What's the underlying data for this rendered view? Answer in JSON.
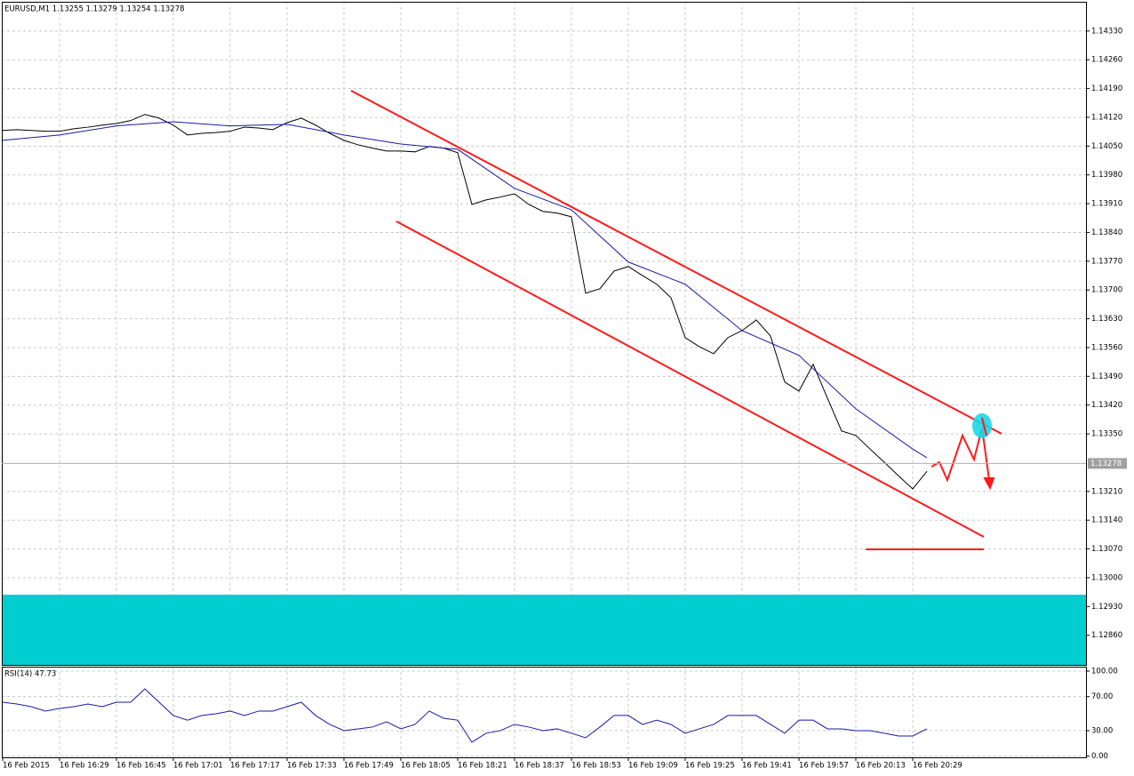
{
  "chart_data": [
    {
      "type": "line",
      "title": "EURUSD,M1  1.13255 1.13279 1.13254 1.13278",
      "x": [
        "16 Feb 16:13",
        "16 Feb 16:17",
        "16 Feb 16:21",
        "16 Feb 16:25",
        "16 Feb 16:29",
        "16 Feb 16:33",
        "16 Feb 16:37",
        "16 Feb 16:41",
        "16 Feb 16:45",
        "16 Feb 16:49",
        "16 Feb 16:53",
        "16 Feb 16:57",
        "16 Feb 17:01",
        "16 Feb 17:05",
        "16 Feb 17:09",
        "16 Feb 17:13",
        "16 Feb 17:17",
        "16 Feb 17:21",
        "16 Feb 17:25",
        "16 Feb 17:29",
        "16 Feb 17:33",
        "16 Feb 17:37",
        "16 Feb 17:41",
        "16 Feb 17:45",
        "16 Feb 17:49",
        "16 Feb 17:53",
        "16 Feb 17:57",
        "16 Feb 18:01",
        "16 Feb 18:05",
        "16 Feb 18:09",
        "16 Feb 18:13",
        "16 Feb 18:17",
        "16 Feb 18:21",
        "16 Feb 18:25",
        "16 Feb 18:29",
        "16 Feb 18:33",
        "16 Feb 18:37",
        "16 Feb 18:41",
        "16 Feb 18:45",
        "16 Feb 18:49",
        "16 Feb 18:53",
        "16 Feb 18:57",
        "16 Feb 19:01",
        "16 Feb 19:05",
        "16 Feb 19:09",
        "16 Feb 19:13",
        "16 Feb 19:17",
        "16 Feb 19:21",
        "16 Feb 19:25",
        "16 Feb 19:29",
        "16 Feb 19:33",
        "16 Feb 19:37",
        "16 Feb 19:41",
        "16 Feb 19:45",
        "16 Feb 19:49",
        "16 Feb 19:53",
        "16 Feb 19:57",
        "16 Feb 20:01",
        "16 Feb 20:05",
        "16 Feb 20:09",
        "16 Feb 20:13",
        "16 Feb 20:17",
        "16 Feb 20:21",
        "16 Feb 20:25",
        "16 Feb 20:29",
        "16 Feb 20:33"
      ],
      "series": [
        {
          "color": "#000000",
          "values": [
            1.14088,
            1.1409,
            1.14088,
            1.14086,
            1.14086,
            1.14092,
            1.14096,
            1.14101,
            1.14105,
            1.14112,
            1.14127,
            1.14118,
            1.14101,
            1.14077,
            1.14081,
            1.14083,
            1.14086,
            1.14096,
            1.14094,
            1.1409,
            1.14107,
            1.14118,
            1.14101,
            1.14081,
            1.14064,
            1.14053,
            1.14045,
            1.14038,
            1.14038,
            1.14036,
            1.14049,
            1.14045,
            1.14034,
            1.13908,
            1.13919,
            1.13926,
            1.13934,
            1.13908,
            1.13891,
            1.13887,
            1.13878,
            1.13692,
            1.13703,
            1.13746,
            1.13757,
            1.13735,
            1.13714,
            1.13681,
            1.13584,
            1.13562,
            1.13545,
            1.13584,
            1.13601,
            1.13627,
            1.13588,
            1.13476,
            1.13454,
            1.13519,
            1.13437,
            1.13357,
            1.13346,
            1.13313,
            1.13281,
            1.13248,
            1.13216,
            1.13259
          ]
        },
        {
          "color": "#1a1aa6",
          "x": [
            "16 Feb 16:13",
            "16 Feb 16:29",
            "16 Feb 16:45",
            "16 Feb 17:01",
            "16 Feb 17:17",
            "16 Feb 17:33",
            "16 Feb 17:49",
            "16 Feb 18:05",
            "16 Feb 18:21",
            "16 Feb 18:37",
            "16 Feb 18:53",
            "16 Feb 19:09",
            "16 Feb 19:25",
            "16 Feb 19:41",
            "16 Feb 19:57",
            "16 Feb 20:13",
            "16 Feb 20:29",
            "16 Feb 20:33"
          ],
          "values": [
            1.14064,
            1.14077,
            1.14099,
            1.14109,
            1.14099,
            1.14103,
            1.14077,
            1.14055,
            1.14042,
            1.13947,
            1.13895,
            1.13768,
            1.13714,
            1.13601,
            1.13541,
            1.13411,
            1.13313,
            1.13292
          ]
        }
      ],
      "ylim": [
        1.12788,
        1.14401
      ],
      "yticks": [
        {
          "value": 1.1433,
          "label": "1.14330"
        },
        {
          "value": 1.1426,
          "label": "1.14260"
        },
        {
          "value": 1.1419,
          "label": "1.14190"
        },
        {
          "value": 1.1412,
          "label": "1.14120"
        },
        {
          "value": 1.1405,
          "label": "1.14050"
        },
        {
          "value": 1.1398,
          "label": "1.13980"
        },
        {
          "value": 1.1391,
          "label": "1.13910"
        },
        {
          "value": 1.1384,
          "label": "1.13840"
        },
        {
          "value": 1.1377,
          "label": "1.13770"
        },
        {
          "value": 1.137,
          "label": "1.13700"
        },
        {
          "value": 1.1363,
          "label": "1.13630"
        },
        {
          "value": 1.1356,
          "label": "1.13560"
        },
        {
          "value": 1.1349,
          "label": "1.13490"
        },
        {
          "value": 1.1342,
          "label": "1.13420"
        },
        {
          "value": 1.1335,
          "label": "1.13350"
        },
        {
          "value": 1.1321,
          "label": "1.13210"
        },
        {
          "value": 1.1314,
          "label": "1.13140"
        },
        {
          "value": 1.1307,
          "label": "1.13070"
        },
        {
          "value": 1.13,
          "label": "1.13000"
        },
        {
          "value": 1.1293,
          "label": "1.12930"
        },
        {
          "value": 1.1286,
          "label": "1.12860"
        }
      ],
      "current_price": {
        "value": 1.13278,
        "label": "1.13278"
      },
      "grid": true
    },
    {
      "type": "line",
      "title": "RSI(14) 47.73",
      "series": [
        {
          "color": "#1a1aa6",
          "values": [
            63.4,
            61.3,
            58.2,
            53.0,
            56.1,
            58.2,
            61.3,
            58.2,
            63.4,
            63.4,
            79.1,
            63.4,
            47.8,
            42.3,
            47.8,
            49.8,
            53.0,
            47.8,
            53.0,
            53.0,
            58.2,
            63.4,
            47.8,
            37.3,
            30.0,
            32.1,
            34.2,
            40.4,
            32.1,
            37.3,
            53.0,
            44.6,
            42.3,
            16.4,
            26.9,
            30.0,
            37.3,
            34.2,
            30.0,
            32.1,
            26.9,
            21.6,
            34.2,
            47.8,
            47.8,
            37.3,
            42.3,
            37.3,
            26.9,
            32.1,
            37.3,
            47.8,
            47.8,
            47.8,
            37.3,
            26.9,
            42.3,
            42.3,
            32.1,
            32.1,
            30.0,
            30.0,
            26.9,
            23.7,
            23.7,
            32.1
          ]
        }
      ],
      "ylim": [
        -1.4,
        105.2
      ],
      "yticks": [
        {
          "value": 100,
          "label": "100.00"
        },
        {
          "value": 70,
          "label": "70.00"
        },
        {
          "value": 30,
          "label": "30.00"
        },
        {
          "value": 0,
          "label": "0.00"
        }
      ],
      "xticks": [
        "16 Feb 2015",
        "16 Feb 16:29",
        "16 Feb 16:45",
        "16 Feb 17:01",
        "16 Feb 17:17",
        "16 Feb 17:33",
        "16 Feb 17:49",
        "16 Feb 18:05",
        "16 Feb 18:21",
        "16 Feb 18:37",
        "16 Feb 18:53",
        "16 Feb 19:09",
        "16 Feb 19:25",
        "16 Feb 19:41",
        "16 Feb 19:57",
        "16 Feb 20:13",
        "16 Feb 20:29"
      ],
      "grid": true
    }
  ]
}
